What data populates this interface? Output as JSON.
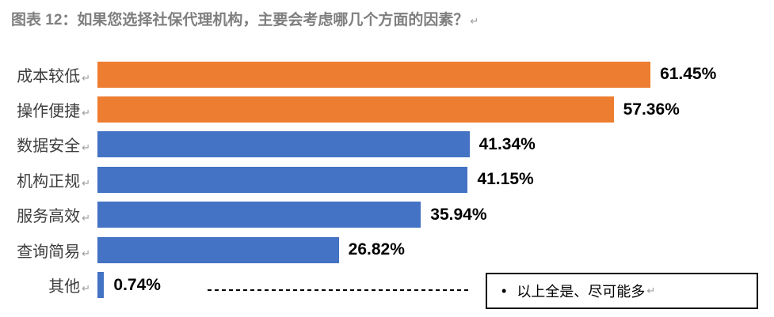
{
  "title": {
    "text": "图表 12：如果您选择社保代理机构，主要会考虑哪几个方面的因素？",
    "return_mark": "↵"
  },
  "chart_data": {
    "type": "bar",
    "orientation": "horizontal",
    "title": "图表 12：如果您选择社保代理机构，主要会考虑哪几个方面的因素？",
    "categories": [
      "成本较低",
      "操作便捷",
      "数据安全",
      "机构正规",
      "服务高效",
      "查询简易",
      "其他"
    ],
    "values": [
      61.45,
      57.36,
      41.34,
      41.15,
      35.94,
      26.82,
      0.74
    ],
    "value_labels": [
      "61.45%",
      "57.36%",
      "41.34%",
      "41.15%",
      "35.94%",
      "26.82%",
      "0.74%"
    ],
    "bar_colors": [
      "#ED7D31",
      "#ED7D31",
      "#4472C4",
      "#4472C4",
      "#4472C4",
      "#4472C4",
      "#4472C4"
    ],
    "category_return_mark": "↵",
    "xlim": [
      0,
      75
    ],
    "grid": false,
    "legend": false,
    "value_label_position": "end-of-bar"
  },
  "annotation": {
    "bullet": "•",
    "text": "以上全是、尽可能多",
    "return_mark": "↵"
  },
  "colors": {
    "orange": "#ED7D31",
    "blue": "#4472C4",
    "title_gray": "#7F7F7F",
    "category_text": "#3D3D3D",
    "value_text": "#000000",
    "return_mark_gray": "#9B9B9B",
    "background": "#FFFFFF"
  }
}
